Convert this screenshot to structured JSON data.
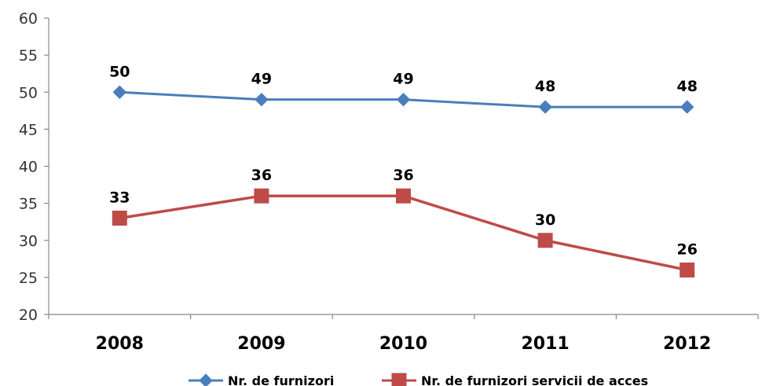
{
  "chart_data": {
    "type": "line",
    "categories": [
      "2008",
      "2009",
      "2010",
      "2011",
      "2012"
    ],
    "ylim": [
      20,
      60
    ],
    "yticks": [
      20,
      25,
      30,
      35,
      40,
      45,
      50,
      55,
      60
    ],
    "grid": false,
    "legend_position": "bottom",
    "series": [
      {
        "name": "Nr. de furnizori",
        "values": [
          50,
          49,
          49,
          48,
          48
        ],
        "color": "#4a7ebb",
        "marker": "diamond"
      },
      {
        "name": "Nr. de furnizori servicii de acces",
        "values": [
          33,
          36,
          36,
          30,
          26
        ],
        "color": "#be4b48",
        "marker": "square"
      }
    ]
  }
}
